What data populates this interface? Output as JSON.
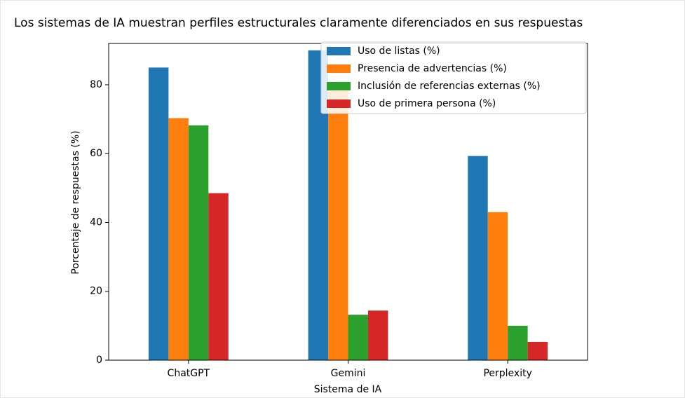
{
  "chart_data": {
    "type": "bar",
    "title": "Los sistemas de IA muestran perfiles estructurales claramente diferenciados en sus respuestas",
    "x_label": "Sistema de IA",
    "y_label": "Porcentaje de respuestas (%)",
    "categories": [
      "ChatGPT",
      "Gemini",
      "Perplexity"
    ],
    "series": [
      {
        "name": "Uso de listas (%)",
        "color": "#1f77b4",
        "values": [
          85,
          90,
          59.3
        ]
      },
      {
        "name": "Presencia de advertencias (%)",
        "color": "#ff7f0e",
        "values": [
          70.3,
          80,
          43
        ]
      },
      {
        "name": "Inclusión de referencias externas (%)",
        "color": "#2ca02c",
        "values": [
          68.2,
          13.2,
          10
        ]
      },
      {
        "name": "Uso de primera persona (%)",
        "color": "#d62728",
        "values": [
          48.5,
          14.4,
          5.3
        ]
      }
    ],
    "ylim": [
      0,
      92
    ],
    "yticks": [
      0,
      20,
      40,
      60,
      80
    ],
    "legend": "upper right"
  }
}
